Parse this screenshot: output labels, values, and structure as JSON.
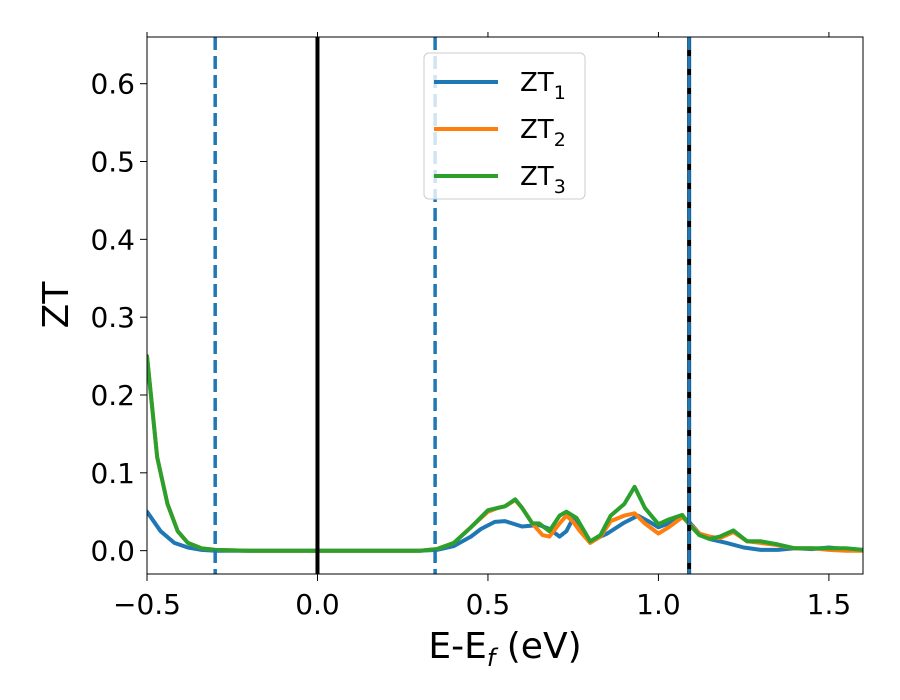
{
  "chart_data": {
    "type": "line",
    "title": "",
    "xlabel_main": "E-E",
    "xlabel_sub": "f",
    "xlabel_unit": " (eV)",
    "ylabel": "ZT",
    "xlim": [
      -0.5,
      1.6
    ],
    "ylim": [
      -0.03,
      0.66
    ],
    "xticks": [
      -0.5,
      0.0,
      0.5,
      1.0,
      1.5
    ],
    "xtick_labels": [
      "−0.5",
      "0.0",
      "0.5",
      "1.0",
      "1.5"
    ],
    "yticks": [
      0.0,
      0.1,
      0.2,
      0.3,
      0.4,
      0.5,
      0.6
    ],
    "ytick_labels": [
      "0.0",
      "0.1",
      "0.2",
      "0.3",
      "0.4",
      "0.5",
      "0.6"
    ],
    "legend_position": "top-center",
    "series": [
      {
        "name_main": "ZT",
        "name_sub": "1",
        "color": "#1f77b4",
        "x": [
          -0.5,
          -0.46,
          -0.42,
          -0.38,
          -0.34,
          -0.3,
          -0.2,
          0.0,
          0.2,
          0.3,
          0.35,
          0.4,
          0.45,
          0.48,
          0.52,
          0.55,
          0.6,
          0.65,
          0.68,
          0.71,
          0.73,
          0.75,
          0.77,
          0.8,
          0.85,
          0.9,
          0.94,
          0.97,
          1.0,
          1.03,
          1.07,
          1.09,
          1.12,
          1.15,
          1.2,
          1.25,
          1.3,
          1.35,
          1.4,
          1.45,
          1.5,
          1.55,
          1.6
        ],
        "y": [
          0.05,
          0.025,
          0.01,
          0.004,
          0.001,
          0.0,
          0.0,
          0.0,
          0.0,
          0.0,
          0.001,
          0.006,
          0.018,
          0.028,
          0.037,
          0.038,
          0.031,
          0.033,
          0.028,
          0.018,
          0.025,
          0.042,
          0.03,
          0.012,
          0.022,
          0.036,
          0.045,
          0.038,
          0.03,
          0.035,
          0.044,
          0.037,
          0.022,
          0.015,
          0.01,
          0.004,
          0.001,
          0.001,
          0.003,
          0.002,
          0.004,
          0.002,
          0.001
        ]
      },
      {
        "name_main": "ZT",
        "name_sub": "2",
        "color": "#ff7f0e",
        "x": [
          -0.5,
          -0.47,
          -0.44,
          -0.41,
          -0.38,
          -0.34,
          -0.3,
          -0.2,
          0.0,
          0.2,
          0.3,
          0.35,
          0.4,
          0.45,
          0.5,
          0.53,
          0.55,
          0.58,
          0.6,
          0.63,
          0.66,
          0.68,
          0.71,
          0.73,
          0.75,
          0.77,
          0.8,
          0.83,
          0.86,
          0.9,
          0.93,
          0.96,
          1.0,
          1.03,
          1.07,
          1.09,
          1.12,
          1.15,
          1.18,
          1.22,
          1.26,
          1.3,
          1.35,
          1.4,
          1.45,
          1.5,
          1.55,
          1.6
        ],
        "y": [
          0.25,
          0.12,
          0.06,
          0.025,
          0.01,
          0.003,
          0.001,
          0.0,
          0.0,
          0.0,
          0.0,
          0.002,
          0.01,
          0.03,
          0.05,
          0.055,
          0.057,
          0.065,
          0.055,
          0.035,
          0.02,
          0.018,
          0.035,
          0.045,
          0.037,
          0.025,
          0.01,
          0.018,
          0.038,
          0.045,
          0.048,
          0.035,
          0.022,
          0.03,
          0.043,
          0.035,
          0.022,
          0.018,
          0.016,
          0.024,
          0.012,
          0.01,
          0.007,
          0.003,
          0.003,
          0.001,
          0.0,
          0.0
        ]
      },
      {
        "name_main": "ZT",
        "name_sub": "3",
        "color": "#2ca02c",
        "x": [
          -0.5,
          -0.47,
          -0.44,
          -0.41,
          -0.38,
          -0.34,
          -0.3,
          -0.2,
          0.0,
          0.2,
          0.3,
          0.35,
          0.4,
          0.45,
          0.5,
          0.53,
          0.55,
          0.58,
          0.6,
          0.63,
          0.65,
          0.68,
          0.71,
          0.73,
          0.76,
          0.8,
          0.83,
          0.86,
          0.9,
          0.93,
          0.96,
          1.0,
          1.03,
          1.07,
          1.09,
          1.12,
          1.15,
          1.18,
          1.22,
          1.26,
          1.3,
          1.35,
          1.4,
          1.45,
          1.5,
          1.55,
          1.6
        ],
        "y": [
          0.25,
          0.12,
          0.06,
          0.025,
          0.01,
          0.003,
          0.001,
          0.0,
          0.0,
          0.0,
          0.0,
          0.002,
          0.01,
          0.03,
          0.052,
          0.055,
          0.057,
          0.066,
          0.055,
          0.035,
          0.035,
          0.025,
          0.045,
          0.05,
          0.042,
          0.012,
          0.02,
          0.045,
          0.06,
          0.082,
          0.055,
          0.034,
          0.04,
          0.046,
          0.034,
          0.02,
          0.015,
          0.018,
          0.026,
          0.012,
          0.012,
          0.008,
          0.003,
          0.003,
          0.003,
          0.003,
          0.001
        ]
      }
    ],
    "vlines": [
      {
        "x": 0.0,
        "style": "solid",
        "color": "#000000"
      },
      {
        "x": -0.3,
        "style": "dashed",
        "color": "#1f77b4"
      },
      {
        "x": 0.345,
        "style": "dashed",
        "color": "#1f77b4"
      },
      {
        "x": 1.09,
        "style": "solid",
        "color": "#000000"
      },
      {
        "x": 1.09,
        "style": "dashed",
        "color": "#1f77b4"
      }
    ]
  }
}
